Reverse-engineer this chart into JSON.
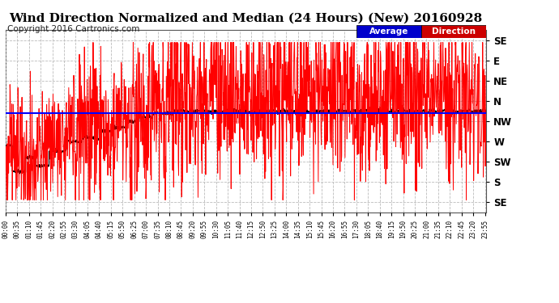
{
  "title": "Wind Direction Normalized and Median (24 Hours) (New) 20160928",
  "copyright": "Copyright 2016 Cartronics.com",
  "ytick_labels_top_to_bottom": [
    "SE",
    "E",
    "NE",
    "N",
    "NW",
    "W",
    "SW",
    "S",
    "SE"
  ],
  "ytick_values": [
    0,
    1,
    2,
    3,
    4,
    5,
    6,
    7,
    8
  ],
  "ylim": [
    -0.5,
    8.5
  ],
  "bg_color": "#ffffff",
  "plot_bg_color": "#ffffff",
  "grid_color": "#bbbbbb",
  "red_color": "#ff0000",
  "black_color": "#000000",
  "blue_color": "#0000ff",
  "legend_avg_bg": "#0000cc",
  "legend_dir_bg": "#cc0000",
  "avg_line_y": 3.6,
  "title_fontsize": 11,
  "copyright_fontsize": 7.5,
  "xtick_step_minutes": 35,
  "n_points": 1440
}
